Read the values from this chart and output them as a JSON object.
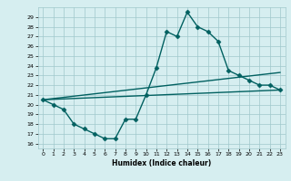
{
  "xlabel": "Humidex (Indice chaleur)",
  "bg_color": "#d6eef0",
  "grid_color": "#a0c8cc",
  "line_color": "#006060",
  "xlim": [
    -0.5,
    23.5
  ],
  "ylim": [
    15.5,
    30.0
  ],
  "xticks": [
    0,
    1,
    2,
    3,
    4,
    5,
    6,
    7,
    8,
    9,
    10,
    11,
    12,
    13,
    14,
    15,
    16,
    17,
    18,
    19,
    20,
    21,
    22,
    23
  ],
  "yticks": [
    16,
    17,
    18,
    19,
    20,
    21,
    22,
    23,
    24,
    25,
    26,
    27,
    28,
    29
  ],
  "curve1_x": [
    0,
    1,
    2,
    3,
    4,
    5,
    6,
    7,
    8,
    9,
    10,
    11,
    12,
    13,
    14,
    15,
    16,
    17,
    18,
    19,
    20,
    21,
    22,
    23
  ],
  "curve1_y": [
    20.5,
    20.0,
    19.5,
    18.0,
    17.5,
    17.0,
    16.5,
    16.5,
    18.5,
    18.5,
    21.0,
    23.8,
    27.5,
    27.0,
    29.5,
    28.0,
    27.5,
    26.5,
    23.5,
    23.0,
    22.5,
    22.0,
    22.0,
    21.5
  ],
  "curve2_x": [
    0,
    23
  ],
  "curve2_y": [
    20.5,
    23.3
  ],
  "curve3_x": [
    0,
    23
  ],
  "curve3_y": [
    20.5,
    21.5
  ],
  "marker": "D",
  "marker_size": 2.5,
  "linewidth": 1.0
}
